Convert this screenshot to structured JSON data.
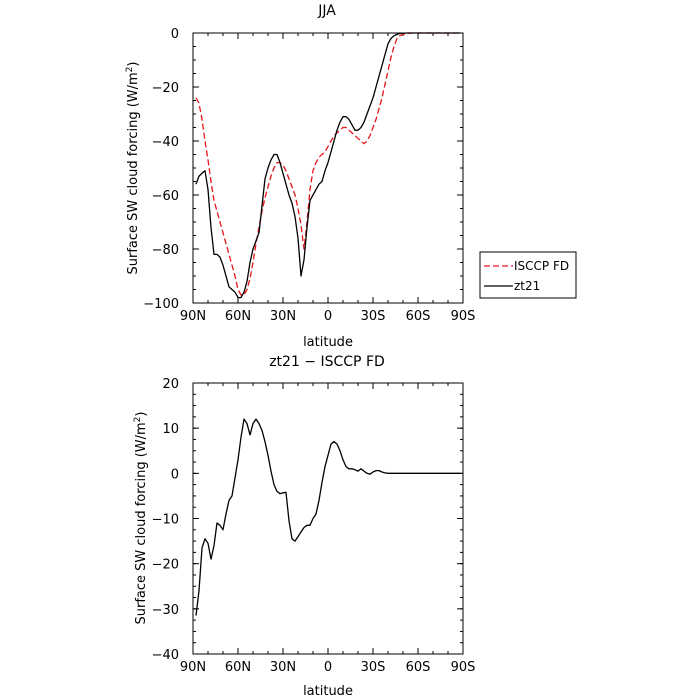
{
  "chart_data": [
    {
      "type": "line",
      "title": "JJA",
      "xlabel": "latitude",
      "ylabel": "Surface SW cloud forcing (W/m",
      "ylabel_sup": "2",
      "ylabel_end": ")",
      "xlim": [
        90,
        -90
      ],
      "ylim": [
        -100,
        0
      ],
      "x_ticks": [
        90,
        60,
        30,
        0,
        -30,
        -60,
        -90
      ],
      "x_tick_labels": [
        "90N",
        "60N",
        "30N",
        "0",
        "30S",
        "60S",
        "90S"
      ],
      "y_ticks": [
        0,
        -20,
        -40,
        -60,
        -80,
        -100
      ],
      "y_tick_labels": [
        "0",
        "−20",
        "−40",
        "−60",
        "−80",
        "−100"
      ],
      "legend_position": "right",
      "series": [
        {
          "name": "ISCCP FD",
          "color": "#e8141c",
          "dash": "dashed",
          "x": [
            88,
            86,
            84,
            82,
            80,
            78,
            76,
            74,
            72,
            70,
            68,
            66,
            64,
            62,
            60,
            58,
            56,
            54,
            52,
            50,
            48,
            46,
            44,
            42,
            40,
            38,
            36,
            34,
            32,
            30,
            28,
            26,
            24,
            22,
            20,
            18,
            16,
            14,
            12,
            10,
            8,
            6,
            4,
            2,
            0,
            -2,
            -4,
            -6,
            -8,
            -10,
            -12,
            -14,
            -16,
            -18,
            -20,
            -22,
            -24,
            -26,
            -28,
            -30,
            -32,
            -34,
            -36,
            -38,
            -40,
            -42,
            -44,
            -46,
            -48,
            -50,
            -52,
            -54,
            -56,
            -58,
            -60,
            -62,
            -64,
            -66,
            -68,
            -70,
            -72,
            -74,
            -76,
            -78,
            -80,
            -82,
            -84,
            -86,
            -88
          ],
          "y": [
            -24,
            -26,
            -32,
            -40,
            -47,
            -55,
            -62,
            -66,
            -70,
            -74,
            -78,
            -82,
            -86,
            -90,
            -95,
            -97,
            -97,
            -95,
            -91,
            -85,
            -78,
            -72,
            -66,
            -61,
            -57,
            -53,
            -50,
            -48,
            -48,
            -49,
            -51,
            -54,
            -57,
            -60,
            -65,
            -71,
            -80,
            -70,
            -58,
            -51,
            -48,
            -46,
            -45,
            -44,
            -42,
            -40,
            -38,
            -37,
            -36,
            -35,
            -35,
            -36,
            -37,
            -38,
            -39,
            -40,
            -41,
            -40,
            -38,
            -35,
            -32,
            -28,
            -24,
            -19,
            -14,
            -9,
            -5,
            -2,
            -1,
            -0.5,
            -0.2,
            -0.1,
            0,
            0,
            0,
            0,
            0,
            0,
            0,
            0,
            0,
            0,
            0,
            0,
            0,
            0,
            0,
            0,
            0
          ]
        },
        {
          "name": "zt21",
          "color": "#000000",
          "dash": "solid",
          "x": [
            88,
            86,
            84,
            82,
            80,
            78,
            76,
            74,
            72,
            70,
            68,
            66,
            64,
            62,
            60,
            58,
            56,
            54,
            52,
            50,
            48,
            46,
            44,
            42,
            40,
            38,
            36,
            34,
            32,
            30,
            28,
            26,
            24,
            22,
            20,
            18,
            16,
            14,
            12,
            10,
            8,
            6,
            4,
            2,
            0,
            -2,
            -4,
            -6,
            -8,
            -10,
            -12,
            -14,
            -16,
            -18,
            -20,
            -22,
            -24,
            -26,
            -28,
            -30,
            -32,
            -34,
            -36,
            -38,
            -40,
            -42,
            -44,
            -46,
            -48,
            -50,
            -52,
            -54,
            -56,
            -58,
            -60,
            -62,
            -64,
            -66,
            -68,
            -70,
            -72,
            -74,
            -76,
            -78,
            -80,
            -82,
            -84,
            -86,
            -88
          ],
          "y": [
            -56,
            -53,
            -52,
            -51,
            -58,
            -72,
            -82,
            -82,
            -83,
            -86,
            -90,
            -94,
            -95,
            -96,
            -98,
            -98,
            -96,
            -92,
            -85,
            -80,
            -77,
            -74,
            -64,
            -54,
            -50,
            -47,
            -45,
            -45,
            -48,
            -52,
            -56,
            -60,
            -63,
            -68,
            -76,
            -90,
            -84,
            -72,
            -62,
            -60,
            -58,
            -56,
            -55,
            -51,
            -48,
            -44,
            -40,
            -36,
            -33,
            -31,
            -31,
            -32,
            -34,
            -36,
            -36,
            -35,
            -33,
            -30,
            -27,
            -24,
            -20,
            -16,
            -12,
            -8,
            -4,
            -2,
            -1,
            -0.5,
            -0.2,
            -0.1,
            0,
            0,
            0,
            0,
            0,
            0,
            0,
            0,
            0,
            0,
            0,
            0,
            0,
            0,
            0,
            0,
            0,
            0,
            0
          ]
        }
      ]
    },
    {
      "type": "line",
      "title": "zt21 − ISCCP FD",
      "xlabel": "latitude",
      "ylabel": "Surface SW cloud forcing (W/m",
      "ylabel_sup": "2",
      "ylabel_end": ")",
      "xlim": [
        90,
        -90
      ],
      "ylim": [
        -40,
        20
      ],
      "x_ticks": [
        90,
        60,
        30,
        0,
        -30,
        -60,
        -90
      ],
      "x_tick_labels": [
        "90N",
        "60N",
        "30N",
        "0",
        "30S",
        "60S",
        "90S"
      ],
      "y_ticks": [
        20,
        10,
        0,
        -10,
        -20,
        -30,
        -40
      ],
      "y_tick_labels": [
        "20",
        "10",
        "0",
        "−10",
        "−20",
        "−30",
        "−40"
      ],
      "series": [
        {
          "color": "#000000",
          "dash": "solid",
          "x": [
            88,
            86,
            84,
            82,
            80,
            78,
            76,
            74,
            72,
            70,
            68,
            66,
            64,
            62,
            60,
            58,
            56,
            54,
            52,
            50,
            48,
            46,
            44,
            42,
            40,
            38,
            36,
            34,
            32,
            30,
            28,
            26,
            24,
            22,
            20,
            18,
            16,
            14,
            12,
            10,
            8,
            6,
            4,
            2,
            0,
            -2,
            -4,
            -6,
            -8,
            -10,
            -12,
            -14,
            -16,
            -18,
            -20,
            -22,
            -24,
            -26,
            -28,
            -30,
            -32,
            -34,
            -36,
            -38,
            -40,
            -42,
            -44,
            -46,
            -48,
            -50,
            -52,
            -54,
            -56,
            -58,
            -60,
            -62,
            -64,
            -66,
            -68,
            -70,
            -72,
            -74,
            -76,
            -78,
            -80,
            -82,
            -84,
            -86,
            -88
          ],
          "y": [
            -31.5,
            -26,
            -16.5,
            -14.5,
            -15.5,
            -19,
            -16,
            -11,
            -11.5,
            -12.5,
            -9,
            -6,
            -5,
            -1,
            3,
            8,
            12,
            11,
            8.5,
            11,
            12,
            11,
            9.5,
            7,
            4,
            0.5,
            -2.5,
            -4,
            -4.5,
            -4.3,
            -4.2,
            -10.5,
            -14.5,
            -15,
            -14,
            -13,
            -12,
            -11.5,
            -11.5,
            -10,
            -9,
            -6,
            -2,
            1.5,
            4,
            6.5,
            7,
            6.5,
            5,
            3,
            1.5,
            1,
            1,
            0.8,
            0.5,
            1,
            0.5,
            0,
            -0.2,
            0.3,
            0.6,
            0.6,
            0.3,
            0.1,
            0,
            0,
            0,
            0,
            0,
            0,
            0,
            0,
            0,
            0,
            0,
            0,
            0,
            0,
            0,
            0,
            0,
            0,
            0,
            0,
            0,
            0,
            0,
            0,
            0
          ]
        }
      ]
    }
  ]
}
